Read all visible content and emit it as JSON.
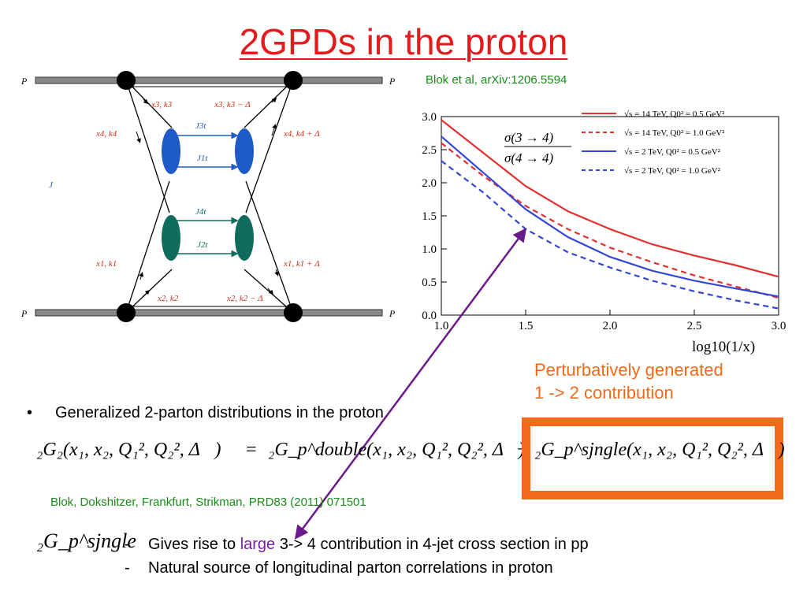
{
  "slide": {
    "title": "2GPDs in the proton",
    "citation_top": "Blok et al, arXiv:1206.5594",
    "annotation_lines": [
      "Perturbatively generated",
      "1 -> 2 contribution"
    ],
    "bullet_text": "Generalized 2-parton distributions in the proton",
    "citation_bottom": "Blok, Dokshitzer, Frankfurt, Strikman, PRD83 (2011) 071501",
    "item1_prefix": "Gives rise to ",
    "item1_highlight": "large",
    "item1_suffix": " 3-> 4 contribution in 4-jet cross section in pp",
    "item2": "Natural source of longitudinal parton correlations in proton",
    "dash": "-",
    "bullet_symbol": "•"
  },
  "diagram": {
    "proton_label": "P",
    "j_label": "J",
    "upper_left_label": "x3, k3",
    "upper_right_label": "x3, k3 − Δ",
    "left_upper_label": "x4, k4",
    "right_upper_label": "x4, k4 + Δ",
    "left_lower_label": "x1, k1",
    "right_lower_label": "x1, k1 + Δ",
    "lower_left_label": "x2, k2",
    "lower_right_label": "x2, k2 − Δ",
    "j3_label": "J3t",
    "j1_label": "J1t",
    "j4_label": "J4t",
    "j2_label": "J2t",
    "blue_color": "#1e5bc6",
    "green_color": "#0f6b5c"
  },
  "equation": {
    "lhs": "₂G₂(x₁, x₂, Q₁², Q₂², Δ⃗)",
    "rhs1": "₂G_p^double(x₁, x₂, Q₁², Q₂², Δ⃗)",
    "rhs2": "₂G_p^sjngle(x₁, x₂, Q₁², Q₂², Δ⃗)",
    "single_term": "₂G_p^sjngle",
    "box_color": "#f26a1b"
  },
  "chart_data": {
    "type": "line",
    "ylabel_num": "σ(3 → 4)",
    "ylabel_den": "σ(4 → 4)",
    "xlabel": "log10(1/x)",
    "xlim": [
      1.0,
      3.0
    ],
    "ylim": [
      0.0,
      3.0
    ],
    "xticks": [
      "1.0",
      "1.5",
      "2.0",
      "2.5",
      "3.0"
    ],
    "yticks": [
      "0.0",
      "0.5",
      "1.0",
      "1.5",
      "2.0",
      "2.5",
      "3.0"
    ],
    "x": [
      1.0,
      1.25,
      1.5,
      1.75,
      2.0,
      2.25,
      2.5,
      2.75,
      3.0
    ],
    "series": [
      {
        "name": "√s = 14 TeV, Q0² = 0.5 GeV²",
        "color": "#e53030",
        "dash": false,
        "values": [
          2.95,
          2.45,
          1.95,
          1.57,
          1.3,
          1.07,
          0.9,
          0.75,
          0.58
        ]
      },
      {
        "name": "√s = 14 TeV, Q0² = 1.0 GeV²",
        "color": "#e53030",
        "dash": true,
        "values": [
          2.6,
          2.1,
          1.65,
          1.3,
          1.02,
          0.8,
          0.6,
          0.43,
          0.26
        ]
      },
      {
        "name": "√s = 2 TeV, Q0² = 0.5 GeV²",
        "color": "#3346d6",
        "dash": false,
        "values": [
          2.7,
          2.15,
          1.6,
          1.18,
          0.88,
          0.67,
          0.52,
          0.4,
          0.28
        ]
      },
      {
        "name": "√s = 2 TeV, Q0² = 1.0 GeV²",
        "color": "#3346d6",
        "dash": true,
        "values": [
          2.33,
          1.85,
          1.3,
          0.95,
          0.72,
          0.52,
          0.36,
          0.22,
          0.1
        ]
      }
    ]
  }
}
